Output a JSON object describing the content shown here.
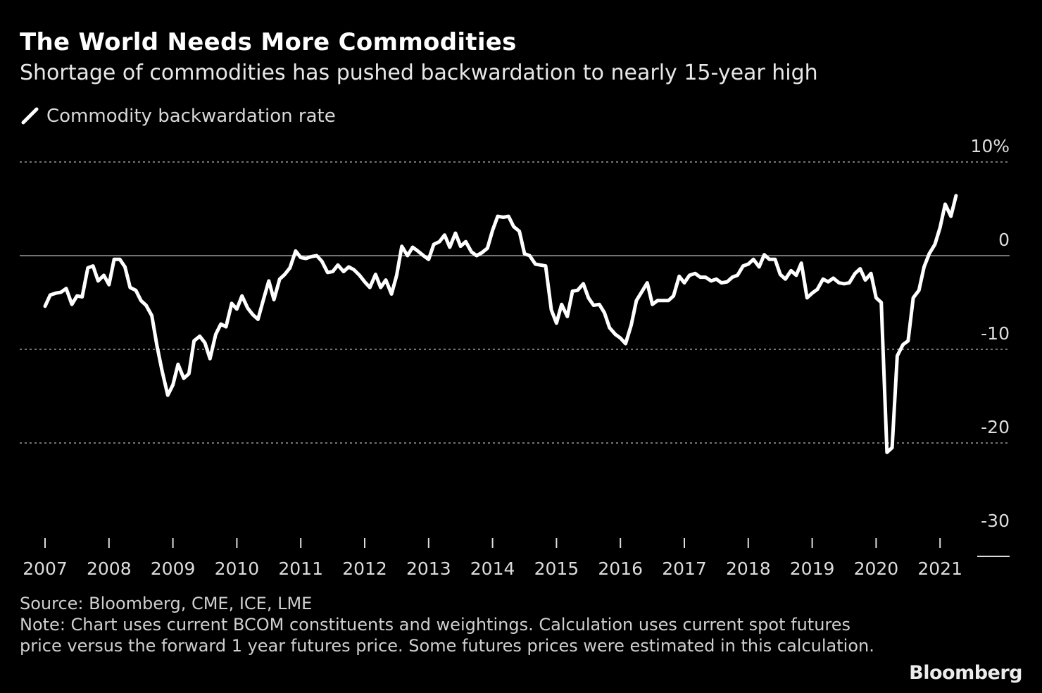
{
  "header": {
    "title": "The World Needs More Commodities",
    "subtitle": "Shortage of commodities has pushed backwardation to nearly 15-year high"
  },
  "legend": {
    "label": "Commodity backwardation rate"
  },
  "footer": {
    "source": "Source: Bloomberg, CME, ICE, LME",
    "note": "Note: Chart uses current BCOM constituents and weightings. Calculation uses current spot futures price versus the forward 1 year futures price. Some futures prices were estimated in this calculation."
  },
  "brand": "Bloomberg",
  "colors": {
    "background": "#000000",
    "line": "#ffffff",
    "grid": "#9a9a9a",
    "text": "#dcdcdc"
  },
  "chart_data": {
    "type": "line",
    "title": "The World Needs More Commodities",
    "subtitle": "Shortage of commodities has pushed backwardation to nearly 15-year high",
    "xlabel": "",
    "ylabel": "",
    "ylim": [
      -30,
      10
    ],
    "xlim": [
      2007.0,
      2022.0
    ],
    "y_ticks": [
      {
        "value": 10,
        "label": "10%"
      },
      {
        "value": 0,
        "label": "0"
      },
      {
        "value": -10,
        "label": "-10"
      },
      {
        "value": -20,
        "label": "-20"
      },
      {
        "value": -30,
        "label": "-30"
      }
    ],
    "x_ticks": [
      {
        "value": 2007,
        "label": "2007"
      },
      {
        "value": 2008,
        "label": "2008"
      },
      {
        "value": 2009,
        "label": "2009"
      },
      {
        "value": 2010,
        "label": "2010"
      },
      {
        "value": 2011,
        "label": "2011"
      },
      {
        "value": 2012,
        "label": "2012"
      },
      {
        "value": 2013,
        "label": "2013"
      },
      {
        "value": 2014,
        "label": "2014"
      },
      {
        "value": 2015,
        "label": "2015"
      },
      {
        "value": 2016,
        "label": "2016"
      },
      {
        "value": 2017,
        "label": "2017"
      },
      {
        "value": 2018,
        "label": "2018"
      },
      {
        "value": 2019,
        "label": "2019"
      },
      {
        "value": 2020,
        "label": "2020"
      },
      {
        "value": 2021,
        "label": "2021"
      }
    ],
    "series": [
      {
        "name": "Commodity backwardation rate",
        "x": [
          2007.0,
          2007.08,
          2007.17,
          2007.25,
          2007.33,
          2007.42,
          2007.5,
          2007.58,
          2007.67,
          2007.75,
          2007.83,
          2007.92,
          2008.0,
          2008.08,
          2008.17,
          2008.25,
          2008.33,
          2008.42,
          2008.5,
          2008.58,
          2008.67,
          2008.75,
          2008.83,
          2008.92,
          2009.0,
          2009.08,
          2009.17,
          2009.25,
          2009.33,
          2009.42,
          2009.5,
          2009.58,
          2009.67,
          2009.75,
          2009.83,
          2009.92,
          2010.0,
          2010.08,
          2010.17,
          2010.25,
          2010.33,
          2010.42,
          2010.5,
          2010.58,
          2010.67,
          2010.75,
          2010.83,
          2010.92,
          2011.0,
          2011.08,
          2011.17,
          2011.25,
          2011.33,
          2011.42,
          2011.5,
          2011.58,
          2011.67,
          2011.75,
          2011.83,
          2011.92,
          2012.0,
          2012.08,
          2012.17,
          2012.25,
          2012.33,
          2012.42,
          2012.5,
          2012.58,
          2012.67,
          2012.75,
          2012.83,
          2012.92,
          2013.0,
          2013.08,
          2013.17,
          2013.25,
          2013.33,
          2013.42,
          2013.5,
          2013.58,
          2013.67,
          2013.75,
          2013.83,
          2013.92,
          2014.0,
          2014.08,
          2014.17,
          2014.25,
          2014.33,
          2014.42,
          2014.5,
          2014.58,
          2014.67,
          2014.75,
          2014.83,
          2014.92,
          2015.0,
          2015.08,
          2015.17,
          2015.25,
          2015.33,
          2015.42,
          2015.5,
          2015.58,
          2015.67,
          2015.75,
          2015.83,
          2015.92,
          2016.0,
          2016.08,
          2016.17,
          2016.25,
          2016.33,
          2016.42,
          2016.5,
          2016.58,
          2016.67,
          2016.75,
          2016.83,
          2016.92,
          2017.0,
          2017.08,
          2017.17,
          2017.25,
          2017.33,
          2017.42,
          2017.5,
          2017.58,
          2017.67,
          2017.75,
          2017.83,
          2017.92,
          2018.0,
          2018.08,
          2018.17,
          2018.25,
          2018.33,
          2018.42,
          2018.5,
          2018.58,
          2018.67,
          2018.75,
          2018.83,
          2018.92,
          2019.0,
          2019.08,
          2019.17,
          2019.25,
          2019.33,
          2019.42,
          2019.5,
          2019.58,
          2019.67,
          2019.75,
          2019.83,
          2019.92,
          2020.0,
          2020.08,
          2020.17,
          2020.25,
          2020.33,
          2020.42,
          2020.5,
          2020.58,
          2020.67,
          2020.75,
          2020.83,
          2020.92,
          2021.0,
          2021.08,
          2021.17,
          2021.25
        ],
        "values": [
          -5.4,
          -4.2,
          -4.0,
          -3.9,
          -3.5,
          -5.2,
          -4.3,
          -4.4,
          -1.3,
          -1.1,
          -2.7,
          -2.1,
          -3.1,
          -0.4,
          -0.4,
          -1.2,
          -3.4,
          -3.7,
          -4.8,
          -5.3,
          -6.4,
          -9.6,
          -12.3,
          -14.9,
          -13.8,
          -11.6,
          -13.1,
          -12.6,
          -9.1,
          -8.6,
          -9.3,
          -11.0,
          -8.4,
          -7.3,
          -7.6,
          -5.1,
          -5.7,
          -4.3,
          -5.6,
          -6.3,
          -6.8,
          -4.6,
          -2.7,
          -4.7,
          -2.5,
          -2.0,
          -1.3,
          0.5,
          -0.2,
          -0.3,
          -0.1,
          0.0,
          -0.6,
          -1.8,
          -1.7,
          -1.0,
          -1.7,
          -1.2,
          -1.5,
          -2.1,
          -2.8,
          -3.4,
          -2.0,
          -3.4,
          -2.6,
          -4.1,
          -2.1,
          1.0,
          0.0,
          0.9,
          0.5,
          0.0,
          -0.4,
          1.2,
          1.5,
          2.2,
          0.9,
          2.4,
          1.0,
          1.5,
          0.4,
          0.0,
          0.3,
          0.8,
          2.7,
          4.2,
          4.1,
          4.2,
          3.1,
          2.6,
          0.2,
          0.0,
          -0.9,
          -1.0,
          -1.1,
          -5.8,
          -7.2,
          -5.2,
          -6.5,
          -3.8,
          -3.7,
          -3.0,
          -4.5,
          -5.3,
          -5.2,
          -6.1,
          -7.7,
          -8.4,
          -8.8,
          -9.4,
          -7.4,
          -4.8,
          -3.9,
          -2.9,
          -5.2,
          -4.8,
          -4.8,
          -4.8,
          -4.3,
          -2.2,
          -2.9,
          -2.1,
          -1.9,
          -2.3,
          -2.3,
          -2.7,
          -2.5,
          -2.9,
          -2.8,
          -2.3,
          -2.1,
          -1.1,
          -0.9,
          -0.4,
          -1.2,
          0.1,
          -0.4,
          -0.4,
          -2.0,
          -2.5,
          -1.6,
          -2.1,
          -0.8,
          -4.5,
          -4.0,
          -3.6,
          -2.5,
          -2.8,
          -2.4,
          -2.9,
          -3.0,
          -2.9,
          -1.9,
          -1.4,
          -2.6,
          -1.9,
          -4.5,
          -5.0,
          -21.0,
          -20.5,
          -10.7,
          -9.5,
          -9.1,
          -4.5,
          -3.7,
          -1.2,
          0.2,
          1.2,
          3.0,
          5.5,
          4.2,
          6.4
        ]
      }
    ]
  }
}
